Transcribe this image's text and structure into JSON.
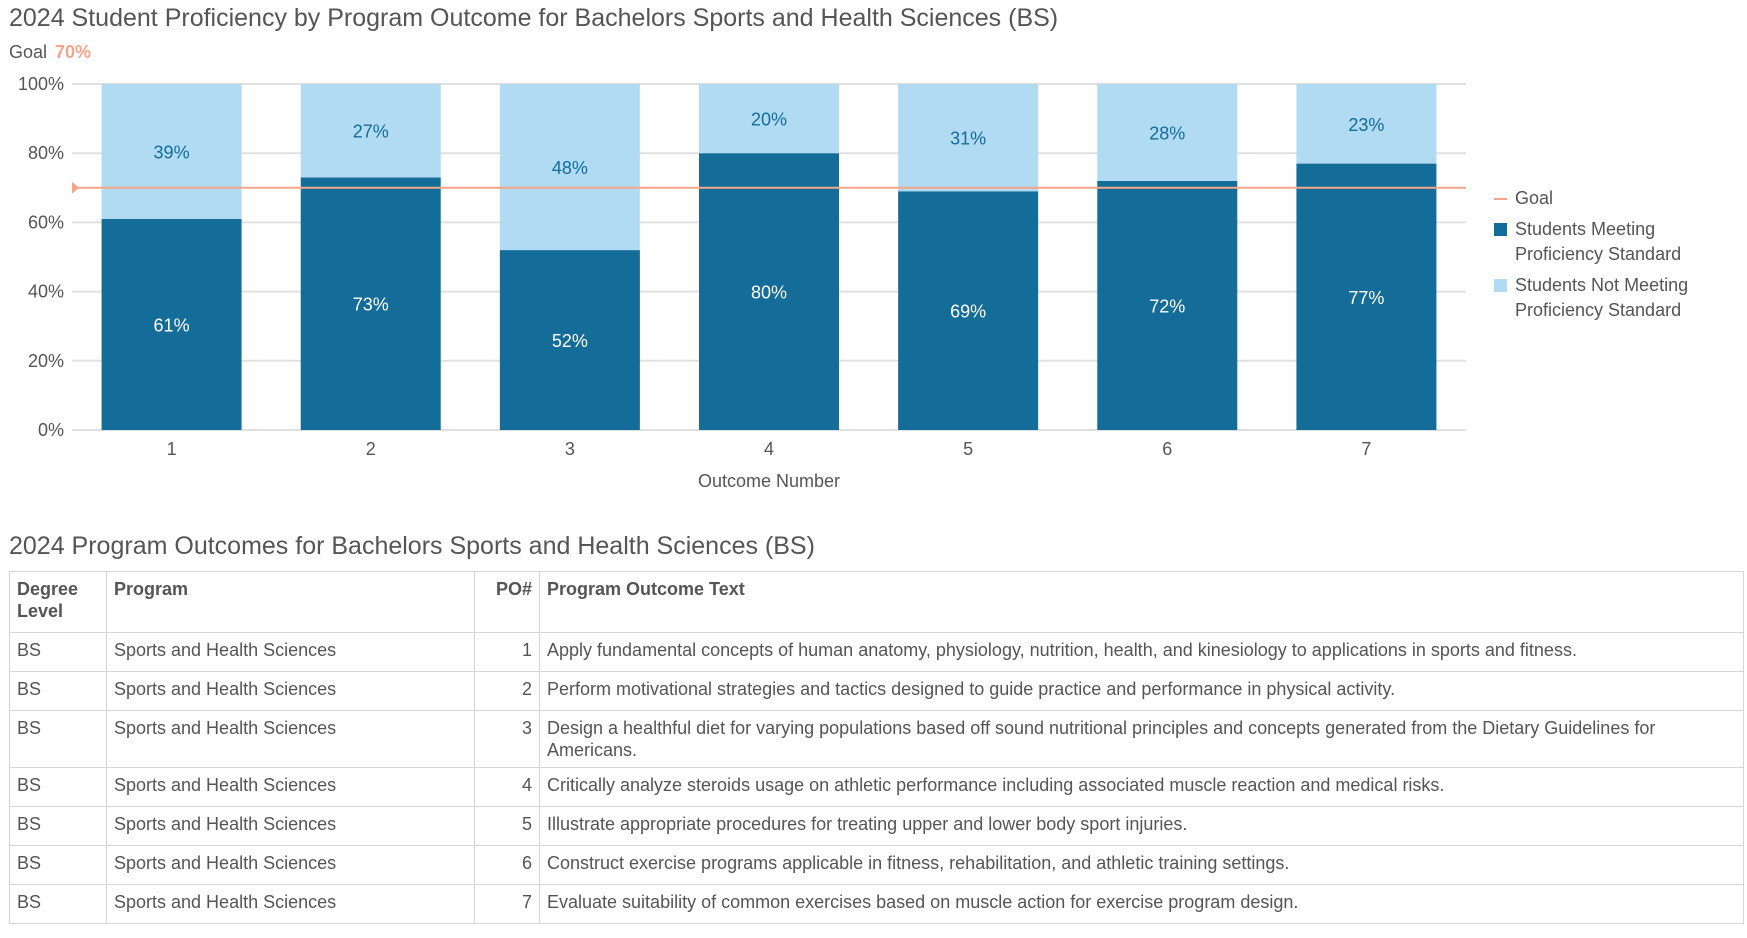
{
  "chart_data": {
    "type": "bar",
    "stacked": true,
    "title": "2024 Student Proficiency by Program Outcome for Bachelors Sports and Health Sciences (BS)",
    "goal_label": "Goal",
    "goal_value_label": "70%",
    "goal": 70,
    "xlabel": "Outcome Number",
    "ylabel": "",
    "ylim": [
      0,
      100
    ],
    "yticks": [
      "0%",
      "20%",
      "40%",
      "60%",
      "80%",
      "100%"
    ],
    "categories": [
      "1",
      "2",
      "3",
      "4",
      "5",
      "6",
      "7"
    ],
    "series": [
      {
        "name": "Students Meeting Proficiency Standard",
        "color": "#146c99",
        "values": [
          61,
          73,
          52,
          80,
          69,
          72,
          77
        ],
        "labels": [
          "61%",
          "73%",
          "52%",
          "80%",
          "69%",
          "72%",
          "77%"
        ]
      },
      {
        "name": "Students Not Meeting Proficiency Standard",
        "color": "#b0dbf3",
        "values": [
          39,
          27,
          48,
          20,
          31,
          28,
          23
        ],
        "labels": [
          "39%",
          "27%",
          "48%",
          "20%",
          "31%",
          "28%",
          "23%"
        ]
      }
    ],
    "legend": {
      "position": "right",
      "goal": "Goal",
      "goal_color": "#f4a58a"
    }
  },
  "table": {
    "title": "2024 Program Outcomes for Bachelors Sports and Health Sciences (BS)",
    "headers": [
      "Degree Level",
      "Program",
      "PO#",
      "Program Outcome Text"
    ],
    "rows": [
      [
        "BS",
        "Sports and Health Sciences",
        "1",
        "Apply fundamental concepts of human anatomy, physiology, nutrition, health, and kinesiology to applications in sports and fitness."
      ],
      [
        "BS",
        "Sports and Health Sciences",
        "2",
        "Perform motivational strategies and tactics designed to guide practice and performance in physical activity."
      ],
      [
        "BS",
        "Sports and Health Sciences",
        "3",
        "Design a healthful diet for varying populations based off sound nutritional principles and concepts generated from the Dietary Guidelines for Americans."
      ],
      [
        "BS",
        "Sports and Health Sciences",
        "4",
        "Critically analyze steroids usage on athletic performance including associated muscle reaction and medical risks."
      ],
      [
        "BS",
        "Sports and Health Sciences",
        "5",
        "Illustrate appropriate procedures for treating upper and lower body sport injuries."
      ],
      [
        "BS",
        "Sports and Health Sciences",
        "6",
        "Construct exercise programs applicable in fitness, rehabilitation, and athletic training settings."
      ],
      [
        "BS",
        "Sports and Health Sciences",
        "7",
        "Evaluate suitability of common exercises based on muscle action for exercise program design."
      ]
    ]
  }
}
